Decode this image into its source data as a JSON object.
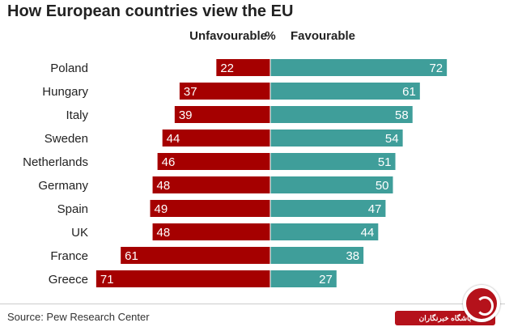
{
  "title": "How European countries view the EU",
  "headers": {
    "unfavourable": "Unfavourable",
    "percent": "%",
    "favourable": "Favourable"
  },
  "source": "Source: Pew Research Center",
  "watermark": {
    "text": "باشگاه خبرنگاران",
    "color": "#b5121b"
  },
  "colors": {
    "unfavourable": "#a50000",
    "favourable": "#3f9e9a"
  },
  "chart_data": {
    "type": "bar",
    "title": "How European countries view the EU",
    "unit": "%",
    "categories": [
      "Poland",
      "Hungary",
      "Italy",
      "Sweden",
      "Netherlands",
      "Germany",
      "Spain",
      "UK",
      "France",
      "Greece"
    ],
    "series": [
      {
        "name": "Unfavourable",
        "values": [
          22,
          37,
          39,
          44,
          46,
          48,
          49,
          48,
          61,
          71
        ]
      },
      {
        "name": "Favourable",
        "values": [
          72,
          61,
          58,
          54,
          51,
          50,
          47,
          44,
          38,
          27
        ]
      }
    ],
    "orientation": "horizontal-diverging",
    "legend": "top",
    "grid": false
  }
}
